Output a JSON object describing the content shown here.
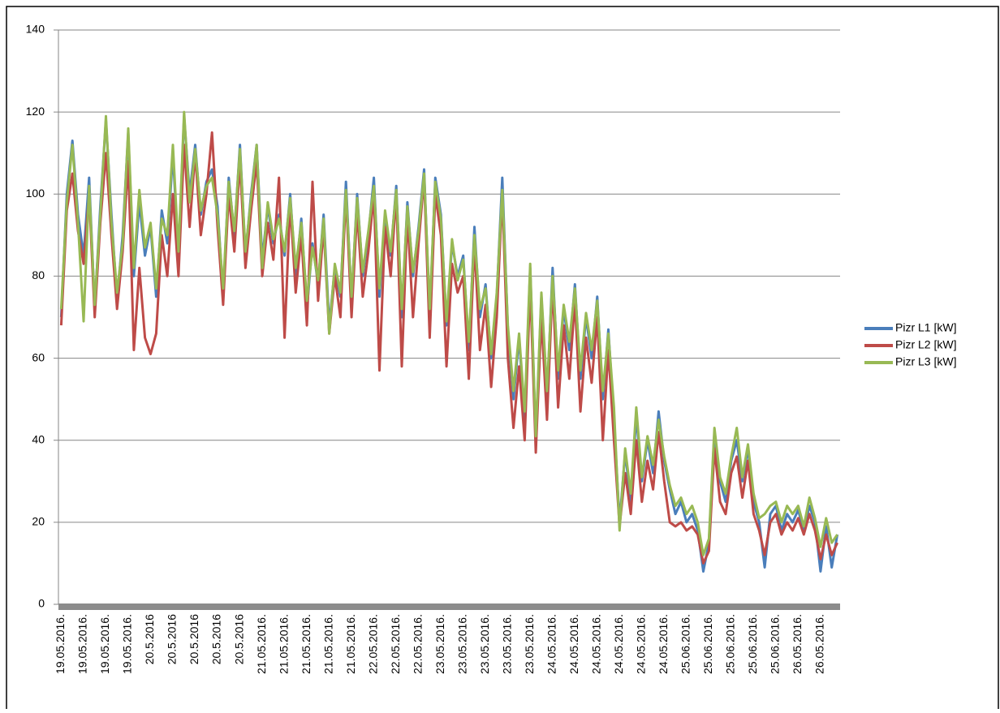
{
  "chart_data": {
    "type": "line",
    "categories": [
      "19.05.2016.",
      null,
      null,
      null,
      "19.05.2016.",
      null,
      null,
      null,
      "19.05.2016.",
      null,
      null,
      null,
      "19.05.2016.",
      null,
      null,
      null,
      "20.5.2016",
      null,
      null,
      null,
      "20.5.2016",
      null,
      null,
      null,
      "20.5.2016",
      null,
      null,
      null,
      "20.5.2016",
      null,
      null,
      null,
      "20.5.2016",
      null,
      null,
      null,
      "21.05.2016.",
      null,
      null,
      null,
      "21.05.2016.",
      null,
      null,
      null,
      "21.05.2016.",
      null,
      null,
      null,
      "21.05.2016.",
      null,
      null,
      null,
      "21.05.2016.",
      null,
      null,
      null,
      "22.05.2016.",
      null,
      null,
      null,
      "22.05.2016.",
      null,
      null,
      null,
      "22.05.2016.",
      null,
      null,
      null,
      "23.05.2016.",
      null,
      null,
      null,
      "23.05.2016.",
      null,
      null,
      null,
      "23.05.2016.",
      null,
      null,
      null,
      "23.05.2016.",
      null,
      null,
      null,
      "23.05.2016.",
      null,
      null,
      null,
      "24.05.2016.",
      null,
      null,
      null,
      "24.05.2016.",
      null,
      null,
      null,
      "24.05.2016.",
      null,
      null,
      null,
      "24.05.2016.",
      null,
      null,
      null,
      "24.05.2016.",
      null,
      null,
      null,
      "24.05.2016.",
      null,
      null,
      null,
      "25.06.2016.",
      null,
      null,
      null,
      "25.06.2016.",
      null,
      null,
      null,
      "25.06.2016.",
      null,
      null,
      null,
      "25.06.2016.",
      null,
      null,
      null,
      "25.06.2016.",
      null,
      null,
      null,
      "26.05.2016.",
      null,
      null,
      null,
      "26.05.2016.",
      null,
      null,
      null
    ],
    "series": [
      {
        "name": "Pizr L1 [kW]",
        "color": "#4a7ebb",
        "values": [
          70,
          100,
          113,
          95,
          85,
          104,
          72,
          97,
          118,
          95,
          74,
          90,
          115,
          80,
          98,
          85,
          92,
          75,
          96,
          88,
          110,
          85,
          119,
          100,
          112,
          95,
          103,
          106,
          97,
          75,
          104,
          90,
          112,
          85,
          100,
          112,
          84,
          97,
          88,
          95,
          85,
          100,
          80,
          94,
          72,
          88,
          78,
          95,
          68,
          82,
          75,
          103,
          74,
          100,
          80,
          90,
          104,
          75,
          95,
          85,
          102,
          70,
          98,
          80,
          92,
          106,
          70,
          104,
          95,
          68,
          88,
          80,
          85,
          62,
          92,
          70,
          78,
          60,
          75,
          104,
          67,
          50,
          65,
          45,
          82,
          40,
          75,
          50,
          82,
          55,
          72,
          62,
          78,
          55,
          70,
          60,
          75,
          50,
          67,
          45,
          20,
          37,
          25,
          46,
          30,
          40,
          32,
          47,
          35,
          28,
          22,
          25,
          20,
          22,
          18,
          8,
          15,
          42,
          30,
          25,
          35,
          40,
          30,
          38,
          25,
          20,
          9,
          22,
          24,
          18,
          22,
          20,
          23,
          18,
          24,
          20,
          8,
          19,
          9,
          17
        ]
      },
      {
        "name": "Pizr L2 [kW]",
        "color": "#be4b48",
        "values": [
          68,
          96,
          105,
          91,
          83,
          100,
          70,
          93,
          110,
          90,
          72,
          86,
          108,
          62,
          82,
          65,
          61,
          66,
          90,
          80,
          100,
          80,
          112,
          92,
          110,
          90,
          100,
          115,
          92,
          73,
          100,
          86,
          108,
          82,
          96,
          108,
          80,
          93,
          84,
          104,
          65,
          98,
          76,
          90,
          68,
          103,
          74,
          92,
          66,
          80,
          70,
          100,
          70,
          96,
          75,
          86,
          100,
          57,
          92,
          80,
          100,
          58,
          95,
          70,
          88,
          104,
          65,
          100,
          90,
          58,
          83,
          76,
          80,
          55,
          88,
          62,
          73,
          53,
          70,
          100,
          60,
          43,
          58,
          40,
          78,
          37,
          70,
          45,
          78,
          48,
          68,
          55,
          74,
          47,
          65,
          54,
          70,
          40,
          62,
          40,
          19,
          32,
          22,
          40,
          25,
          35,
          28,
          42,
          30,
          20,
          19,
          20,
          18,
          19,
          17,
          10,
          13,
          38,
          25,
          22,
          32,
          36,
          26,
          35,
          22,
          18,
          12,
          20,
          22,
          17,
          20,
          18,
          21,
          17,
          22,
          18,
          11,
          17,
          12,
          15
        ]
      },
      {
        "name": "Pizr L3 [kW]",
        "color": "#98b954",
        "values": [
          72,
          98,
          112,
          93,
          69,
          102,
          73,
          95,
          119,
          93,
          76,
          88,
          116,
          82,
          101,
          87,
          93,
          77,
          94,
          90,
          112,
          86,
          120,
          98,
          111,
          96,
          102,
          104,
          95,
          77,
          103,
          91,
          111,
          86,
          99,
          112,
          82,
          98,
          89,
          94,
          86,
          99,
          82,
          93,
          74,
          87,
          79,
          94,
          66,
          83,
          76,
          101,
          75,
          99,
          81,
          91,
          102,
          77,
          96,
          86,
          101,
          72,
          97,
          81,
          91,
          105,
          72,
          103,
          94,
          69,
          89,
          79,
          84,
          64,
          90,
          72,
          77,
          61,
          76,
          101,
          68,
          52,
          66,
          47,
          83,
          41,
          76,
          52,
          80,
          57,
          73,
          64,
          77,
          57,
          71,
          62,
          74,
          52,
          66,
          48,
          18,
          38,
          27,
          48,
          31,
          41,
          34,
          45,
          36,
          29,
          24,
          26,
          22,
          24,
          20,
          12,
          16,
          43,
          31,
          27,
          36,
          43,
          31,
          39,
          27,
          21,
          22,
          24,
          25,
          20,
          24,
          22,
          24,
          19,
          26,
          21,
          14,
          21,
          15,
          17
        ]
      }
    ],
    "ylim": [
      0,
      140
    ],
    "yticks": [
      0,
      20,
      40,
      60,
      80,
      100,
      120,
      140
    ],
    "grid": true,
    "legend": "right"
  }
}
